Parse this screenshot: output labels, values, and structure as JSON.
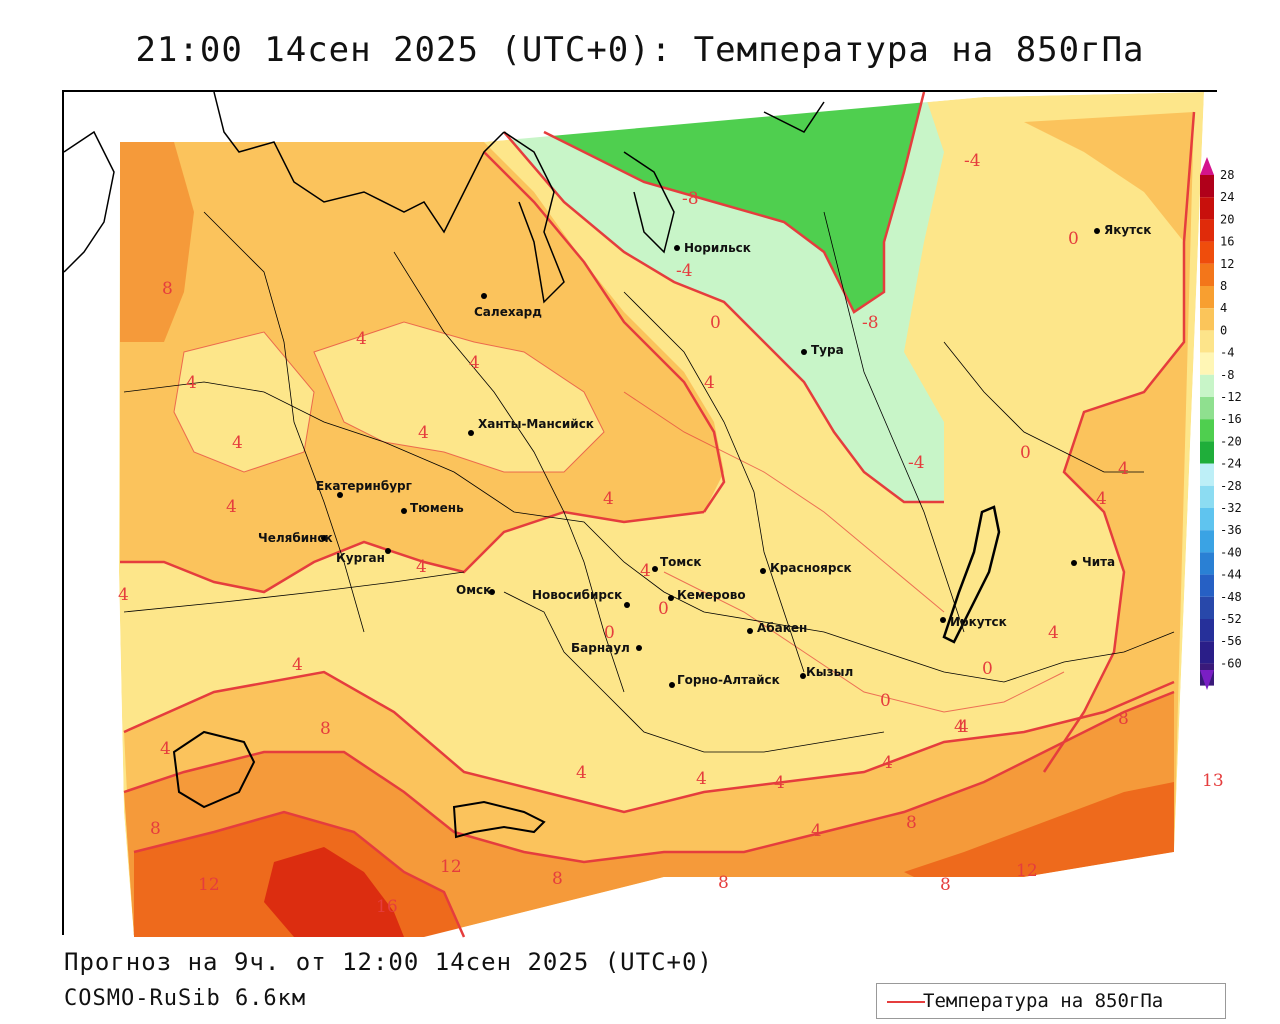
{
  "title": "21:00 14сен 2025 (UTC+0): Температура на 850гПа",
  "footer": {
    "forecast": "Прогноз на 9ч. от 12:00 14сен 2025 (UTC+0)",
    "model": "COSMO-RuSib 6.6км"
  },
  "legend": {
    "label": "Температура на 850гПа",
    "color": "#e53d3d"
  },
  "colors": {
    "frame": "#000000",
    "isoline": "#e53d3d",
    "neg_green_light": "#c8f5c8",
    "neg_green": "#4fcf4f",
    "zero_to_4": "#fde68a",
    "four_to_8": "#fbc35c",
    "eight_to_12": "#f59a3a",
    "twelve_to_16": "#ee6a1c",
    "sixteen_plus": "#dc2d10"
  },
  "colorbar": {
    "levels": [
      "28",
      "24",
      "20",
      "16",
      "12",
      "8",
      "4",
      "0",
      "-4",
      "-8",
      "-12",
      "-16",
      "-20",
      "-24",
      "-28",
      "-32",
      "-36",
      "-40",
      "-44",
      "-48",
      "-52",
      "-56",
      "-60"
    ],
    "colors": [
      "#b0001a",
      "#c8100c",
      "#e02b0a",
      "#ef4d0c",
      "#f3761a",
      "#f89f30",
      "#fbc55a",
      "#fde48a",
      "#fff6b5",
      "#c8f5c8",
      "#8fe08f",
      "#4fcf4f",
      "#1fae3a",
      "#bdeff7",
      "#8cdcf2",
      "#5fc4ef",
      "#3aa3e4",
      "#2a80d4",
      "#2660c4",
      "#2848aa",
      "#26309a",
      "#2a1e88",
      "#3a1a7a"
    ]
  },
  "cities": [
    {
      "name": "Якутск"
    },
    {
      "name": "Норильск"
    },
    {
      "name": "Салехард"
    },
    {
      "name": "Тура"
    },
    {
      "name": "Ханты-Мансийск"
    },
    {
      "name": "Екатеринбург"
    },
    {
      "name": "Тюмень"
    },
    {
      "name": "Челябинск"
    },
    {
      "name": "Курган"
    },
    {
      "name": "Омск"
    },
    {
      "name": "Томск"
    },
    {
      "name": "Красноярск"
    },
    {
      "name": "Новосибирск"
    },
    {
      "name": "Кемерово"
    },
    {
      "name": "Барнаул"
    },
    {
      "name": "Абакен"
    },
    {
      "name": "Горно-Алтайск"
    },
    {
      "name": "Кызыл"
    },
    {
      "name": "Иркутск"
    },
    {
      "name": "Чита"
    }
  ],
  "isoline_labels": [
    "8",
    "4",
    "4",
    "4",
    "4",
    "4",
    "4",
    "4",
    "4",
    "4",
    "4",
    "4",
    "4",
    "4",
    "4",
    "4",
    "4",
    "4",
    "4",
    "4",
    "4",
    "0",
    "0",
    "0",
    "0",
    "0",
    "0",
    "0",
    "-4",
    "-4",
    "-4",
    "-8",
    "-8",
    "8",
    "8",
    "8",
    "8",
    "8",
    "8",
    "8",
    "12",
    "12",
    "12",
    "16",
    "13",
    "4",
    "4",
    "4"
  ]
}
